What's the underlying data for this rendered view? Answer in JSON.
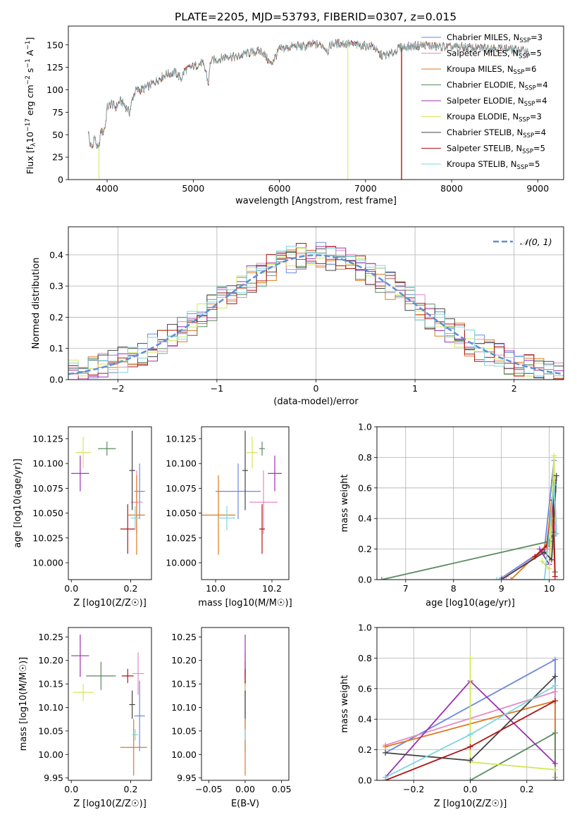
{
  "figure_title": "PLATE=2205, MJD=53793, FIBERID=0307, z=0.015",
  "model_colors": [
    "#6a89e0",
    "#e58ac2",
    "#de7a1f",
    "#5a8a5f",
    "#9b30b0",
    "#d4e65a",
    "#444444",
    "#b01515",
    "#7fd6dc"
  ],
  "chart_data": [
    {
      "type": "line",
      "panel": "spectrum",
      "title": "PLATE=2205, MJD=53793, FIBERID=0307, z=0.015",
      "xlabel": "wavelength [Angstrom, rest frame]",
      "ylabel": "Flux [f$_\\lambda$10$^{-17}$ erg cm$^{-2}$ s$^{-1}$ A$^{-1}$]",
      "ylabel_parts": {
        "a": "Flux [f",
        "b": "λ",
        "c": "10",
        "d": "−17",
        "e": " erg cm",
        "f": "−2",
        "g": " s",
        "h": "−1",
        "i": " A",
        "j": "−1",
        "k": "]"
      },
      "xlim": [
        3550,
        9300
      ],
      "ylim": [
        0,
        171
      ],
      "xticks": [
        4000,
        5000,
        6000,
        7000,
        8000,
        9000
      ],
      "yticks": [
        0,
        25,
        50,
        75,
        100,
        125,
        150
      ],
      "legend_position": "top-right",
      "continuum": {
        "x": [
          3780,
          3800,
          3830,
          3850,
          3880,
          3900,
          3930,
          3950,
          3980,
          4000,
          4050,
          4100,
          4150,
          4200,
          4260,
          4300,
          4340,
          4400,
          4500,
          4600,
          4700,
          4800,
          4860,
          4900,
          5000,
          5100,
          5150,
          5175,
          5200,
          5300,
          5400,
          5500,
          5600,
          5700,
          5800,
          5890,
          5900,
          6000,
          6100,
          6200,
          6300,
          6400,
          6500,
          6563,
          6600,
          6700,
          6800,
          6900,
          7000,
          7100,
          7150,
          7200,
          7300,
          7400,
          7500,
          7600,
          7700,
          7800,
          7900,
          8000,
          8100,
          8200,
          8300,
          8400,
          8500,
          8600,
          8700,
          8800,
          8900
        ],
        "y": [
          55,
          40,
          35,
          48,
          38,
          33,
          55,
          52,
          60,
          80,
          85,
          80,
          88,
          83,
          75,
          92,
          100,
          100,
          105,
          112,
          118,
          119,
          112,
          122,
          126,
          130,
          120,
          105,
          132,
          134,
          138,
          136,
          140,
          142,
          143,
          130,
          128,
          145,
          147,
          149,
          148,
          151,
          150,
          143,
          151,
          152,
          151,
          150,
          149,
          148,
          140,
          138,
          140,
          147,
          148,
          149,
          150,
          148,
          148,
          147,
          148,
          147,
          146,
          147,
          147,
          146,
          145,
          144,
          143
        ]
      },
      "drops": [
        {
          "model": "Kroupa ELODIE",
          "x": 3905
        },
        {
          "model": "Kroupa ELODIE",
          "x": 6795
        },
        {
          "model": "Kroupa MILES",
          "x": 7415
        },
        {
          "model": "Salpeter STELIB",
          "x": 7420
        }
      ],
      "series": [
        {
          "name_prefix": "Chabrier MILES, N",
          "name_sub": "SSP",
          "name_suffix": "=3"
        },
        {
          "name_prefix": "Salpeter MILES, N",
          "name_sub": "SSP",
          "name_suffix": "=5"
        },
        {
          "name_prefix": "Kroupa MILES, N",
          "name_sub": "SSP",
          "name_suffix": "=6"
        },
        {
          "name_prefix": "Chabrier ELODIE, N",
          "name_sub": "SSP",
          "name_suffix": "=4"
        },
        {
          "name_prefix": "Salpeter ELODIE, N",
          "name_sub": "SSP",
          "name_suffix": "=4"
        },
        {
          "name_prefix": "Kroupa ELODIE, N",
          "name_sub": "SSP",
          "name_suffix": "=3"
        },
        {
          "name_prefix": "Chabrier STELIB, N",
          "name_sub": "SSP",
          "name_suffix": "=4"
        },
        {
          "name_prefix": "Salpeter STELIB, N",
          "name_sub": "SSP",
          "name_suffix": "=5"
        },
        {
          "name_prefix": "Kroupa STELIB, N",
          "name_sub": "SSP",
          "name_suffix": "=5"
        }
      ]
    },
    {
      "type": "histogram",
      "panel": "residuals",
      "xlabel": "(data-model)/error",
      "ylabel": "Normed distribution",
      "xlim": [
        -2.5,
        2.5
      ],
      "ylim": [
        0,
        0.49
      ],
      "xticks": [
        -2,
        -1,
        0,
        1,
        2
      ],
      "yticks": [
        0.0,
        0.1,
        0.2,
        0.3,
        0.4
      ],
      "grid": true,
      "legend_position": "top-right",
      "reference_curve": {
        "name": "𝒩(0, 1)",
        "mean": 0,
        "sigma": 1,
        "style": "dashed"
      },
      "bins": {
        "start": -2.5,
        "width": 0.1,
        "count": 50
      }
    },
    {
      "type": "errorbar",
      "panel": "age-vs-Z",
      "xlabel": "Z [log10(Z/Z☉)]",
      "ylabel": "age [log10(age/yr)]",
      "xlim": [
        -0.01,
        0.27
      ],
      "ylim": [
        9.983,
        10.137
      ],
      "xticks": [
        0.0,
        0.2
      ],
      "yticks": [
        10.0,
        10.025,
        10.05,
        10.075,
        10.1,
        10.125
      ],
      "points": [
        {
          "x": 0.23,
          "y": 10.072,
          "xerr": 0.018,
          "yerr": 0.028
        },
        {
          "x": 0.22,
          "y": 10.061,
          "xerr": 0.02,
          "yerr": 0.032
        },
        {
          "x": 0.22,
          "y": 10.048,
          "xerr": 0.028,
          "yerr": 0.04
        },
        {
          "x": 0.12,
          "y": 10.115,
          "xerr": 0.03,
          "yerr": 0.007
        },
        {
          "x": 0.03,
          "y": 10.09,
          "xerr": 0.03,
          "yerr": 0.018
        },
        {
          "x": 0.04,
          "y": 10.111,
          "xerr": 0.025,
          "yerr": 0.016
        },
        {
          "x": 0.205,
          "y": 10.093,
          "xerr": 0.01,
          "yerr": 0.04
        },
        {
          "x": 0.19,
          "y": 10.034,
          "xerr": 0.025,
          "yerr": 0.025
        },
        {
          "x": 0.215,
          "y": 10.045,
          "xerr": 0.015,
          "yerr": 0.012
        }
      ]
    },
    {
      "type": "errorbar",
      "panel": "age-vs-mass",
      "xlabel": "mass [log10(M/M☉)]",
      "ylabel": "",
      "xlim": [
        9.95,
        10.26
      ],
      "ylim": [
        9.983,
        10.137
      ],
      "xticks": [
        10.0,
        10.2
      ],
      "yticks": [
        10.0,
        10.025,
        10.05,
        10.075,
        10.1,
        10.125
      ],
      "points": [
        {
          "x": 10.08,
          "y": 10.072,
          "xerr": 0.08,
          "yerr": 0.028
        },
        {
          "x": 10.17,
          "y": 10.061,
          "xerr": 0.05,
          "yerr": 0.032
        },
        {
          "x": 10.01,
          "y": 10.048,
          "xerr": 0.06,
          "yerr": 0.04
        },
        {
          "x": 10.165,
          "y": 10.115,
          "xerr": 0.01,
          "yerr": 0.007
        },
        {
          "x": 10.21,
          "y": 10.09,
          "xerr": 0.025,
          "yerr": 0.018
        },
        {
          "x": 10.13,
          "y": 10.111,
          "xerr": 0.02,
          "yerr": 0.016
        },
        {
          "x": 10.105,
          "y": 10.093,
          "xerr": 0.01,
          "yerr": 0.04
        },
        {
          "x": 10.165,
          "y": 10.034,
          "xerr": 0.01,
          "yerr": 0.025
        },
        {
          "x": 10.04,
          "y": 10.045,
          "xerr": 0.03,
          "yerr": 0.012
        }
      ]
    },
    {
      "type": "line",
      "panel": "mass-weight-vs-age",
      "xlabel": "age [log10(age/yr)]",
      "ylabel": "mass weight",
      "xlim": [
        6.4,
        10.3
      ],
      "ylim": [
        0.0,
        1.0
      ],
      "xticks": [
        7,
        8,
        9,
        10
      ],
      "yticks": [
        0.0,
        0.2,
        0.4,
        0.6,
        0.8,
        1.0
      ],
      "grid": true,
      "series": [
        {
          "x": [
            9.0,
            9.9,
            10.1,
            10.12
          ],
          "y": [
            0.01,
            0.2,
            0.78,
            0.4
          ]
        },
        {
          "x": [
            9.1,
            9.95,
            10.1,
            10.13
          ],
          "y": [
            0.02,
            0.2,
            0.58,
            0.3
          ]
        },
        {
          "x": [
            9.2,
            9.95,
            10.05,
            10.12
          ],
          "y": [
            0.0,
            0.23,
            0.52,
            0.05
          ]
        },
        {
          "x": [
            6.5,
            10.0,
            10.1,
            10.12
          ],
          "y": [
            0.0,
            0.25,
            0.31,
            0.05
          ]
        },
        {
          "x": [
            9.8,
            10.0,
            10.1,
            10.15
          ],
          "y": [
            0.2,
            0.1,
            0.65,
            0.3
          ]
        },
        {
          "x": [
            9.85,
            10.0,
            10.1,
            10.12
          ],
          "y": [
            0.12,
            0.07,
            0.81,
            0.4
          ]
        },
        {
          "x": [
            9.0,
            9.9,
            10.05,
            10.15
          ],
          "y": [
            0.0,
            0.18,
            0.13,
            0.68
          ]
        },
        {
          "x": [
            9.7,
            9.95,
            10.08,
            10.12
          ],
          "y": [
            0.15,
            0.22,
            0.52,
            0.02
          ]
        },
        {
          "x": [
            8.9,
            9.9,
            10.1,
            10.15
          ],
          "y": [
            0.0,
            0.0,
            0.62,
            0.3
          ]
        }
      ]
    },
    {
      "type": "errorbar",
      "panel": "mass-vs-Z",
      "xlabel": "Z [log10(Z/Z☉)]",
      "ylabel": "mass [log10(M/M☉)]",
      "xlim": [
        -0.01,
        0.27
      ],
      "ylim": [
        9.945,
        10.27
      ],
      "xticks": [
        0.0,
        0.2
      ],
      "yticks": [
        9.95,
        10.0,
        10.05,
        10.1,
        10.15,
        10.2,
        10.25
      ],
      "points": [
        {
          "x": 0.23,
          "y": 10.082,
          "xerr": 0.018,
          "yerr": 0.075
        },
        {
          "x": 0.225,
          "y": 10.172,
          "xerr": 0.02,
          "yerr": 0.045
        },
        {
          "x": 0.21,
          "y": 10.015,
          "xerr": 0.045,
          "yerr": 0.06
        },
        {
          "x": 0.1,
          "y": 10.167,
          "xerr": 0.05,
          "yerr": 0.03
        },
        {
          "x": 0.03,
          "y": 10.21,
          "xerr": 0.03,
          "yerr": 0.045
        },
        {
          "x": 0.04,
          "y": 10.132,
          "xerr": 0.035,
          "yerr": 0.018
        },
        {
          "x": 0.205,
          "y": 10.106,
          "xerr": 0.01,
          "yerr": 0.03
        },
        {
          "x": 0.19,
          "y": 10.167,
          "xerr": 0.02,
          "yerr": 0.015
        },
        {
          "x": 0.215,
          "y": 10.042,
          "xerr": 0.01,
          "yerr": 0.012
        }
      ]
    },
    {
      "type": "errorbar",
      "panel": "mass-vs-EBV",
      "xlabel": "E(B-V)",
      "ylabel": "",
      "xlim": [
        -0.06,
        0.06
      ],
      "ylim": [
        9.945,
        10.27
      ],
      "xticks": [
        -0.05,
        0.0,
        0.05
      ],
      "yticks": [
        9.95,
        10.0,
        10.05,
        10.1,
        10.15,
        10.2,
        10.25
      ],
      "points": [
        {
          "x": 0,
          "y": 10.082,
          "xerr": 0,
          "yerr": 0.075
        },
        {
          "x": 0,
          "y": 10.172,
          "xerr": 0,
          "yerr": 0.045
        },
        {
          "x": 0,
          "y": 10.015,
          "xerr": 0,
          "yerr": 0.06
        },
        {
          "x": 0,
          "y": 10.167,
          "xerr": 0,
          "yerr": 0.03
        },
        {
          "x": 0,
          "y": 10.21,
          "xerr": 0,
          "yerr": 0.045
        },
        {
          "x": 0,
          "y": 10.132,
          "xerr": 0,
          "yerr": 0.018
        },
        {
          "x": 0,
          "y": 10.106,
          "xerr": 0,
          "yerr": 0.03
        },
        {
          "x": 0,
          "y": 10.167,
          "xerr": 0,
          "yerr": 0.015
        },
        {
          "x": 0,
          "y": 10.042,
          "xerr": 0,
          "yerr": 0.012
        }
      ]
    },
    {
      "type": "line",
      "panel": "mass-weight-vs-Z",
      "xlabel": "Z [log10(Z/Z☉)]",
      "ylabel": "mass weight",
      "xlim": [
        -0.33,
        0.33
      ],
      "ylim": [
        0.0,
        1.0
      ],
      "xticks": [
        -0.2,
        0.0,
        0.2
      ],
      "yticks": [
        0.0,
        0.2,
        0.4,
        0.6,
        0.8,
        1.0
      ],
      "grid": true,
      "series": [
        {
          "x": [
            -0.3,
            0.3,
            0.3
          ],
          "y": [
            0.18,
            0.79,
            0.0
          ]
        },
        {
          "x": [
            -0.3,
            0.3,
            0.3
          ],
          "y": [
            0.23,
            0.58,
            0.02
          ]
        },
        {
          "x": [
            -0.3,
            0.3,
            0.3
          ],
          "y": [
            0.22,
            0.52,
            0.0
          ]
        },
        {
          "x": [
            0.0,
            0.3,
            0.3
          ],
          "y": [
            0.0,
            0.31,
            0.0
          ]
        },
        {
          "x": [
            -0.3,
            0.0,
            0.3
          ],
          "y": [
            0.02,
            0.65,
            0.11
          ]
        },
        {
          "x": [
            0.0,
            0.0,
            0.3
          ],
          "y": [
            0.8,
            0.12,
            0.07
          ]
        },
        {
          "x": [
            -0.3,
            0.0,
            0.3
          ],
          "y": [
            0.18,
            0.13,
            0.68
          ]
        },
        {
          "x": [
            -0.3,
            0.0,
            0.3
          ],
          "y": [
            0.0,
            0.22,
            0.52
          ]
        },
        {
          "x": [
            -0.3,
            0.0,
            0.3
          ],
          "y": [
            0.02,
            0.3,
            0.62
          ]
        }
      ]
    }
  ]
}
